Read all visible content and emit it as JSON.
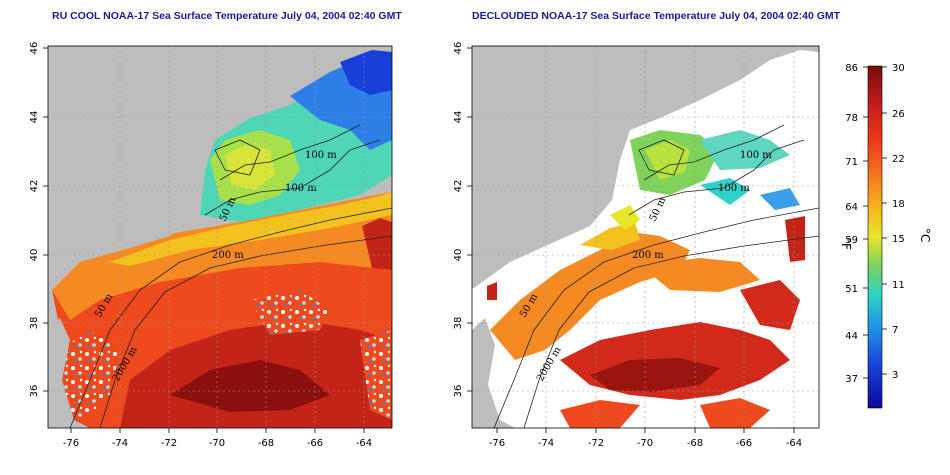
{
  "left_panel": {
    "title": "RU COOL NOAA-17 Sea Surface Temperature July 04, 2004 02:40 GMT"
  },
  "right_panel": {
    "title": "DECLOUDED NOAA-17 Sea Surface Temperature July 04, 2004 02:40 GMT"
  },
  "map_axes": {
    "lon_ticks": [
      "-76",
      "-74",
      "-72",
      "-70",
      "-68",
      "-66",
      "-64"
    ],
    "lat_ticks": [
      "36",
      "38",
      "40",
      "42",
      "44",
      "46"
    ]
  },
  "contour_labels": [
    "100 m",
    "100 m",
    "50 m",
    "200 m",
    "50 m",
    "2000 m"
  ],
  "colorbar": {
    "fahrenheit_unit": "°F",
    "celsius_unit": "°C",
    "fahrenheit_ticks": [
      "86",
      "78",
      "71",
      "64",
      "59",
      "51",
      "44",
      "37"
    ],
    "celsius_ticks": [
      "30",
      "26",
      "22",
      "18",
      "15",
      "11",
      "7",
      "3"
    ],
    "colors": [
      "#7a0a0a",
      "#c81e1e",
      "#ee3a18",
      "#f57d1f",
      "#f6b81f",
      "#e8e62a",
      "#7fd35a",
      "#2ed2c8",
      "#1f8fe8",
      "#1a3fd8",
      "#0a0a9a"
    ]
  },
  "colors": {
    "land": "#bdbdbd",
    "title": "#1a1aa0",
    "contour": "#222222"
  }
}
